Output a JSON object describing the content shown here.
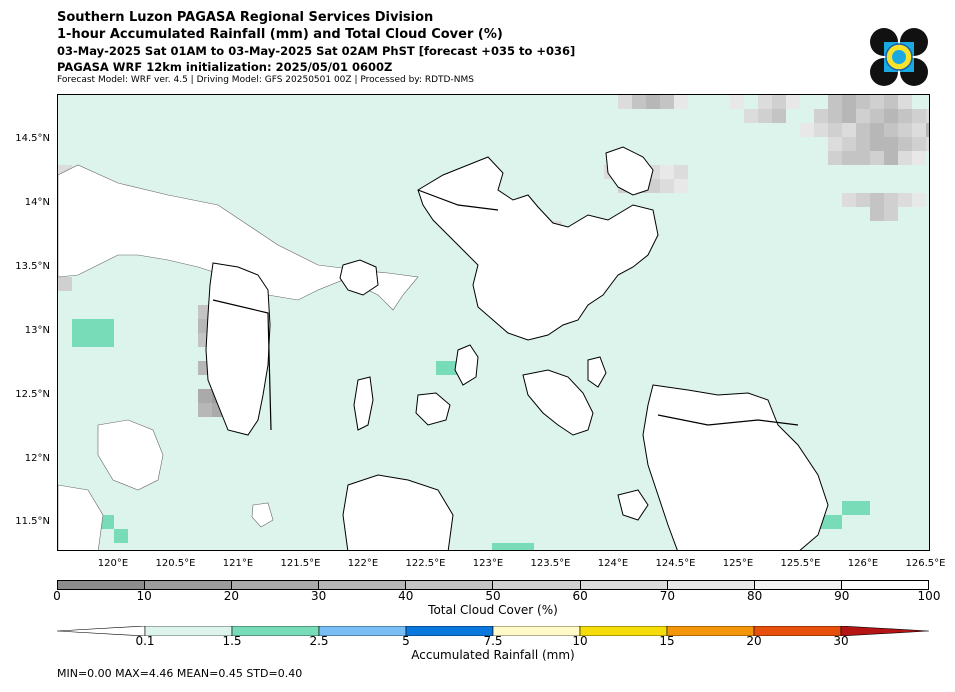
{
  "header": {
    "title": "Southern Luzon PAGASA Regional Services Division",
    "subtitle": "1-hour Accumulated Rainfall (mm) and Total Cloud Cover (%)",
    "valid_time": "03-May-2025 Sat 01AM to 03-May-2025 Sat 02AM PhST [forecast +035 to +036]",
    "init": "PAGASA WRF 12km initialization: 2025/05/01 0600Z",
    "model_info": "Forecast Model: WRF ver. 4.5 | Driving Model: GFS 20250501 00Z | Processed by: RDTD-NMS"
  },
  "map": {
    "lon_ticks": [
      "120°E",
      "120.5°E",
      "121°E",
      "121.5°E",
      "122°E",
      "122.5°E",
      "123°E",
      "123.5°E",
      "124°E",
      "124.5°E",
      "125°E",
      "125.5°E",
      "126°E",
      "126.5°E"
    ],
    "lat_ticks": [
      "14.5°N",
      "14°N",
      "13.5°N",
      "13°N",
      "12.5°N",
      "12°N",
      "11.5°N"
    ],
    "colors": {
      "ocean_tint": "#dcf4ec",
      "land": "#ffffff",
      "coast": "#000000"
    }
  },
  "cloud_colorbar": {
    "label": "Total Cloud Cover (%)",
    "ticks": [
      "0",
      "10",
      "20",
      "30",
      "40",
      "50",
      "60",
      "70",
      "80",
      "90",
      "100"
    ],
    "colors": [
      "#8c8c8c",
      "#9c9c9c",
      "#aaaaaa",
      "#b7b7b7",
      "#c4c4c4",
      "#d0d0d0",
      "#dcdcdc",
      "#e8e8e8",
      "#f3f3f3",
      "#ffffff"
    ]
  },
  "rain_colorbar": {
    "label": "Accumulated Rainfall (mm)",
    "ticks": [
      "0.1",
      "1.5",
      "2.5",
      "5",
      "7.5",
      "10",
      "15",
      "20",
      "30"
    ],
    "colors": [
      "#ffffff",
      "#dcf4ec",
      "#78dcb9",
      "#78bef5",
      "#0a78dc",
      "#fffac8",
      "#f5dc0a",
      "#f5960a",
      "#e6500a",
      "#b41414"
    ]
  },
  "stats": "MIN=0.00   MAX=4.46   MEAN=0.45   STD=0.40"
}
